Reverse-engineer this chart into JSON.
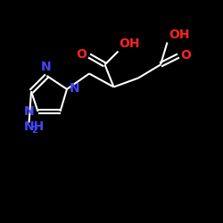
{
  "background_color": "#000000",
  "bond_color": "#ffffff",
  "bond_width": 1.5,
  "N_color": "#4444ff",
  "O_color": "#ff2222",
  "font_size": 10,
  "font_size_sub": 7,
  "xlim": [
    0,
    10
  ],
  "ylim": [
    0,
    10
  ]
}
